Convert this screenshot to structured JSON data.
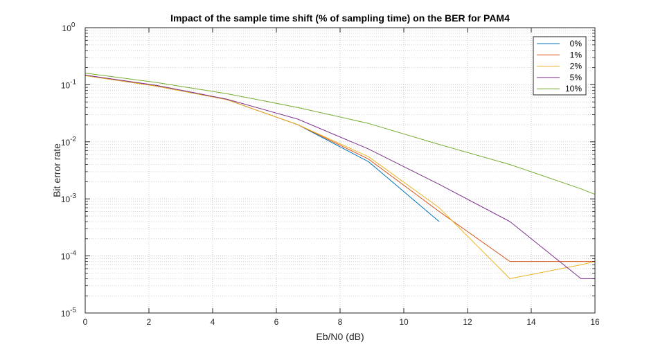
{
  "chart_data": {
    "type": "line",
    "title": "Impact of the sample time shift (% of sampling time) on the BER for PAM4",
    "xlabel": "Eb/N0 (dB)",
    "ylabel": "Bit error rate",
    "xlim": [
      0,
      16
    ],
    "ylim": [
      1e-05,
      1
    ],
    "yscale": "log",
    "grid": true,
    "minor_grid": true,
    "legend_position": "top-right",
    "x_ticks": [
      0,
      2,
      4,
      6,
      8,
      10,
      12,
      14,
      16
    ],
    "x_tick_labels": [
      "0",
      "2",
      "4",
      "6",
      "8",
      "10",
      "12",
      "14",
      "16"
    ],
    "y_ticks": [
      1e-05,
      0.0001,
      0.001,
      0.01,
      0.1,
      1
    ],
    "y_tick_labels": [
      {
        "base": "10",
        "exp": "-5"
      },
      {
        "base": "10",
        "exp": "-4"
      },
      {
        "base": "10",
        "exp": "-3"
      },
      {
        "base": "10",
        "exp": "-2"
      },
      {
        "base": "10",
        "exp": "-1"
      },
      {
        "base": "10",
        "exp": "0"
      }
    ],
    "series": [
      {
        "name": "0%",
        "color": "#0072BD",
        "x": [
          0,
          2.22,
          4.44,
          6.67,
          8.89,
          11.11
        ],
        "y": [
          0.145,
          0.095,
          0.055,
          0.02,
          0.0045,
          0.0004
        ]
      },
      {
        "name": "1%",
        "color": "#D95319",
        "x": [
          0,
          2.22,
          4.44,
          6.67,
          8.89,
          11.11,
          13.33,
          15.56,
          16
        ],
        "y": [
          0.145,
          0.095,
          0.055,
          0.02,
          0.005,
          0.0006,
          8e-05,
          8e-05,
          8e-05
        ]
      },
      {
        "name": "2%",
        "color": "#EDB120",
        "x": [
          0,
          2.22,
          4.44,
          6.67,
          8.89,
          11.11,
          13.33,
          15.56,
          16
        ],
        "y": [
          0.145,
          0.095,
          0.055,
          0.02,
          0.0055,
          0.0007,
          4e-05,
          7e-05,
          8e-05
        ]
      },
      {
        "name": "5%",
        "color": "#7E2F8E",
        "x": [
          0,
          2.22,
          4.44,
          6.67,
          8.89,
          11.11,
          13.33,
          15.56,
          16
        ],
        "y": [
          0.148,
          0.098,
          0.056,
          0.025,
          0.0075,
          0.0018,
          0.0004,
          4e-05,
          4e-05
        ]
      },
      {
        "name": "10%",
        "color": "#77AC30",
        "x": [
          0,
          2.22,
          4.44,
          6.67,
          8.89,
          11.11,
          13.33,
          15.56,
          16
        ],
        "y": [
          0.16,
          0.11,
          0.07,
          0.04,
          0.021,
          0.009,
          0.004,
          0.0015,
          0.0012
        ]
      }
    ]
  }
}
